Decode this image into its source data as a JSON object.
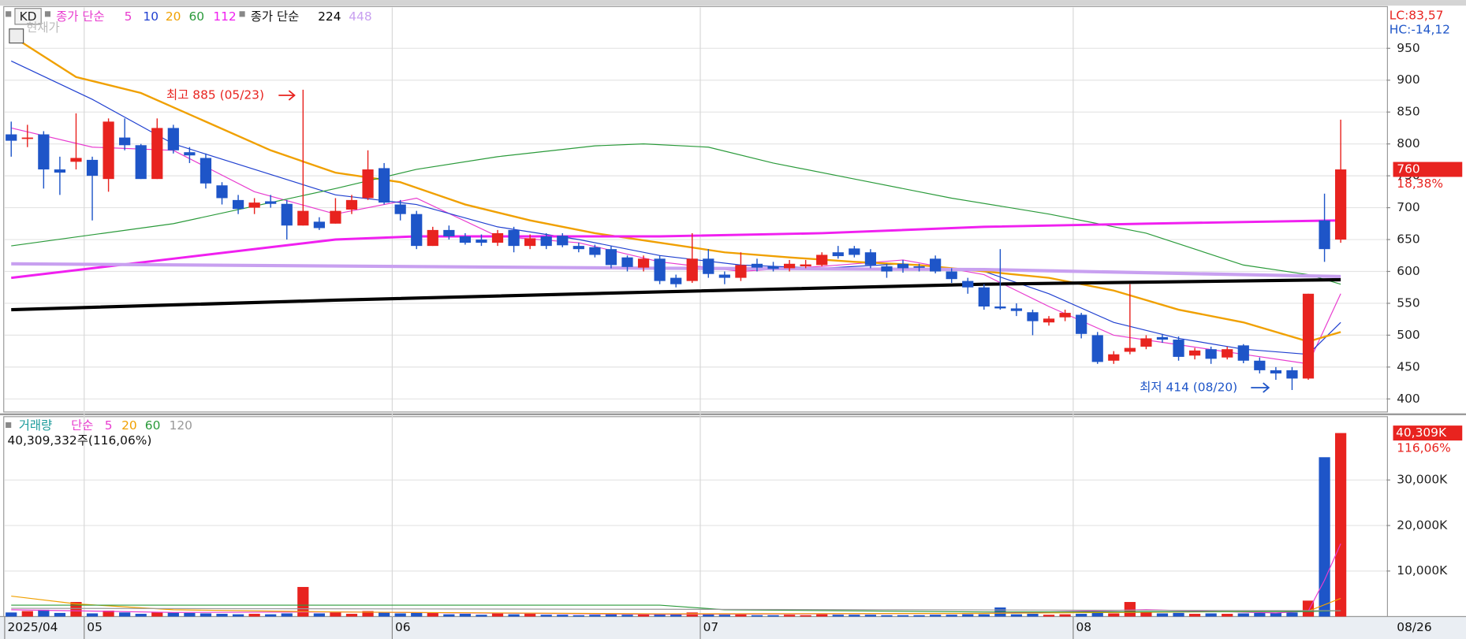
{
  "chart_data": {
    "type": "candlestick",
    "legend_prefix": "KD",
    "legend_label_1": "종가 단순",
    "legend_label_2": "종가 단순",
    "button": "현재가",
    "lc": "LC:83,57",
    "hc": "HC:-14,12",
    "change_label": "18,38%",
    "annotation_high": "최고 885 (05/23)",
    "annotation_low": "최저 414 (08/20)",
    "categories": [
      "2025/04",
      null,
      null,
      null,
      null,
      "05",
      null,
      null,
      null,
      null,
      null,
      null,
      null,
      null,
      null,
      null,
      null,
      null,
      null,
      null,
      null,
      null,
      null,
      null,
      "06",
      null,
      null,
      null,
      null,
      null,
      null,
      null,
      null,
      null,
      null,
      null,
      null,
      null,
      null,
      null,
      null,
      null,
      null,
      "07",
      null,
      null,
      null,
      null,
      null,
      null,
      null,
      null,
      null,
      null,
      null,
      null,
      null,
      null,
      null,
      null,
      null,
      null,
      null,
      null,
      null,
      null,
      "08",
      null,
      null,
      null,
      null,
      null,
      null,
      null,
      null,
      null,
      null,
      null,
      null,
      null,
      null,
      null,
      null
    ],
    "current_date": "08/26",
    "open": [
      815,
      808,
      815,
      760,
      772,
      775,
      745,
      810,
      798,
      745,
      825,
      787,
      778,
      735,
      712,
      700,
      710,
      706,
      672,
      678,
      675,
      697,
      715,
      762,
      705,
      690,
      640,
      665,
      655,
      650,
      645,
      665,
      640,
      655,
      656,
      640,
      638,
      635,
      622,
      606,
      620,
      590,
      585,
      620,
      595,
      590,
      612,
      608,
      605,
      608,
      610,
      630,
      636,
      630,
      608,
      612,
      608,
      620,
      600,
      585,
      575,
      545,
      542,
      536,
      520,
      528,
      532,
      500,
      460,
      474,
      482,
      497,
      493,
      468,
      478,
      465,
      484,
      460,
      445,
      445,
      432,
      680,
      650
    ],
    "high": [
      835,
      830,
      820,
      780,
      848,
      780,
      840,
      840,
      800,
      840,
      830,
      795,
      785,
      740,
      720,
      715,
      720,
      712,
      885,
      685,
      715,
      720,
      790,
      770,
      712,
      695,
      670,
      672,
      660,
      658,
      665,
      670,
      658,
      660,
      660,
      645,
      642,
      640,
      625,
      625,
      625,
      595,
      660,
      635,
      600,
      630,
      620,
      615,
      618,
      618,
      630,
      640,
      640,
      635,
      612,
      618,
      612,
      625,
      605,
      590,
      580,
      635,
      550,
      540,
      530,
      540,
      535,
      505,
      475,
      580,
      500,
      502,
      498,
      480,
      482,
      482,
      486,
      465,
      450,
      450,
      565,
      722,
      838
    ],
    "low": [
      780,
      795,
      730,
      720,
      760,
      680,
      725,
      790,
      745,
      745,
      785,
      770,
      730,
      705,
      690,
      690,
      700,
      650,
      672,
      665,
      675,
      690,
      712,
      705,
      680,
      635,
      640,
      650,
      642,
      640,
      640,
      630,
      635,
      635,
      638,
      630,
      622,
      605,
      600,
      600,
      580,
      575,
      582,
      590,
      580,
      585,
      600,
      600,
      600,
      605,
      608,
      620,
      622,
      605,
      590,
      598,
      600,
      597,
      582,
      565,
      540,
      540,
      530,
      500,
      515,
      522,
      495,
      455,
      455,
      470,
      478,
      488,
      460,
      462,
      455,
      462,
      456,
      440,
      430,
      414,
      430,
      615,
      645
    ],
    "close": [
      805,
      810,
      760,
      755,
      778,
      750,
      835,
      798,
      745,
      825,
      790,
      782,
      738,
      715,
      698,
      708,
      706,
      672,
      695,
      668,
      695,
      712,
      760,
      708,
      690,
      640,
      665,
      655,
      645,
      645,
      660,
      640,
      652,
      640,
      641,
      635,
      626,
      610,
      607,
      620,
      585,
      580,
      620,
      596,
      590,
      610,
      606,
      604,
      612,
      611,
      626,
      624,
      626,
      610,
      600,
      605,
      606,
      600,
      588,
      575,
      545,
      542,
      538,
      522,
      526,
      535,
      502,
      458,
      470,
      480,
      495,
      493,
      466,
      476,
      463,
      478,
      460,
      445,
      440,
      432,
      565,
      635,
      760
    ],
    "up_color": "#e8231f",
    "down_color": "#1e55c8",
    "ylim": [
      381,
      1014
    ],
    "yticks": [
      400,
      450,
      500,
      550,
      600,
      650,
      700,
      750,
      800,
      850,
      900,
      950
    ],
    "grid": true,
    "series": [
      {
        "name": "5",
        "color": "#e83ccf",
        "line_width": 1,
        "x": [
          0,
          5,
          10,
          15,
          20,
          25,
          30,
          35,
          40,
          45,
          50,
          55,
          60,
          64,
          68,
          72,
          76,
          80,
          82
        ],
        "values": [
          825,
          795,
          790,
          725,
          690,
          715,
          655,
          645,
          615,
          600,
          608,
          618,
          595,
          545,
          500,
          485,
          470,
          455,
          565
        ]
      },
      {
        "name": "10",
        "color": "#2040d0",
        "line_width": 1,
        "x": [
          0,
          5,
          10,
          15,
          20,
          25,
          30,
          35,
          40,
          45,
          50,
          55,
          60,
          64,
          68,
          72,
          76,
          80,
          82
        ],
        "values": [
          930,
          870,
          800,
          760,
          720,
          705,
          670,
          650,
          625,
          610,
          605,
          612,
          600,
          565,
          520,
          495,
          478,
          470,
          520
        ]
      },
      {
        "name": "20",
        "color": "#f0a000",
        "line_width": 2,
        "x": [
          0,
          4,
          8,
          12,
          16,
          20,
          24,
          28,
          32,
          36,
          40,
          44,
          48,
          52,
          56,
          60,
          64,
          68,
          72,
          76,
          80,
          82
        ],
        "values": [
          970,
          905,
          880,
          835,
          790,
          755,
          740,
          705,
          680,
          660,
          645,
          630,
          622,
          615,
          610,
          600,
          590,
          570,
          540,
          520,
          490,
          505
        ]
      },
      {
        "name": "60",
        "color": "#2a9a3a",
        "line_width": 1,
        "x": [
          0,
          10,
          20,
          25,
          30,
          36,
          39,
          43,
          47,
          52,
          58,
          64,
          70,
          76,
          80,
          82
        ],
        "values": [
          640,
          675,
          730,
          760,
          780,
          797,
          800,
          795,
          770,
          745,
          715,
          690,
          660,
          610,
          595,
          580
        ]
      },
      {
        "name": "112",
        "color": "#f020f0",
        "line_width": 2.5,
        "x": [
          0,
          10,
          20,
          25,
          40,
          50,
          60,
          70,
          82
        ],
        "values": [
          590,
          620,
          650,
          655,
          655,
          660,
          670,
          675,
          680
        ]
      },
      {
        "name": "224",
        "color": "#000000",
        "line_width": 3.5,
        "x": [
          0,
          20,
          40,
          60,
          82
        ],
        "values": [
          540,
          555,
          568,
          580,
          587
        ]
      },
      {
        "name": "448",
        "color": "#c8a0f0",
        "line_width": 3.5,
        "x": [
          0,
          40,
          60,
          82
        ],
        "values": [
          612,
          605,
          603,
          592
        ]
      }
    ],
    "volume_legend": "거래량",
    "volume_legend_label": "단순",
    "volume_text": "40,309,332주(116,06%)",
    "volume_value_label": "40,309K",
    "volume_change_label": "116,06%",
    "volume": [
      900,
      1200,
      1500,
      800,
      3200,
      700,
      1300,
      900,
      600,
      1000,
      900,
      800,
      700,
      600,
      500,
      600,
      500,
      700,
      6500,
      700,
      900,
      600,
      1200,
      900,
      700,
      800,
      900,
      500,
      600,
      400,
      800,
      500,
      600,
      400,
      400,
      300,
      400,
      500,
      400,
      500,
      700,
      500,
      900,
      500,
      400,
      500,
      300,
      300,
      400,
      300,
      500,
      400,
      400,
      400,
      300,
      300,
      300,
      400,
      400,
      500,
      500,
      2000,
      500,
      600,
      400,
      500,
      600,
      900,
      700,
      3200,
      900,
      700,
      800,
      600,
      700,
      600,
      700,
      800,
      800,
      900,
      3500,
      35000,
      40309
    ],
    "volume_ylim": [
      0,
      43500
    ],
    "volume_yticks": [
      {
        "value": 10000,
        "label": "10,000K"
      },
      {
        "value": 20000,
        "label": "20,000K"
      },
      {
        "value": 30000,
        "label": "30,000K"
      }
    ],
    "volume_series": [
      {
        "name": "5",
        "color": "#e83ccf",
        "x": [
          0,
          10,
          20,
          40,
          60,
          70,
          78,
          80,
          81,
          82
        ],
        "values": [
          1500,
          900,
          1000,
          500,
          700,
          1500,
          800,
          1200,
          8000,
          16000
        ]
      },
      {
        "name": "20",
        "color": "#f0a000",
        "x": [
          0,
          4,
          10,
          20,
          40,
          60,
          80,
          82
        ],
        "values": [
          4500,
          2800,
          1500,
          1000,
          600,
          700,
          1200,
          4000
        ]
      },
      {
        "name": "60",
        "color": "#2a9a3a",
        "x": [
          0,
          40,
          44,
          60,
          80,
          82
        ],
        "values": [
          2500,
          2500,
          1500,
          1000,
          1100,
          1300
        ]
      },
      {
        "name": "120",
        "color": "#999999",
        "x": [
          0,
          40,
          82
        ],
        "values": [
          1800,
          1600,
          1300
        ]
      }
    ]
  }
}
